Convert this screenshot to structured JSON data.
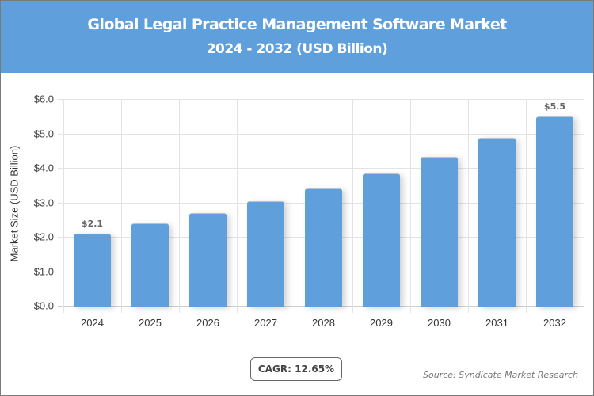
{
  "header": {
    "title": "Global Legal Practice Management Software Market",
    "subtitle": "2024 - 2032 (USD Billion)"
  },
  "footer": {
    "cagr": "CAGR: 12.65%",
    "source": "Source: Syndicate Market Research"
  },
  "colors": {
    "header_bg": "#5f9fdc",
    "bar": "#5f9fdc"
  },
  "chart_data": {
    "type": "bar",
    "title": "Global Legal Practice Management Software Market 2024 - 2032 (USD Billion)",
    "xlabel": "",
    "ylabel": "Market Size (USD Billion)",
    "ylim": [
      0,
      6
    ],
    "yticks": [
      "$0.0",
      "$1.0",
      "$2.0",
      "$3.0",
      "$4.0",
      "$5.0",
      "$6.0"
    ],
    "categories": [
      "2024",
      "2025",
      "2026",
      "2027",
      "2028",
      "2029",
      "2030",
      "2031",
      "2032"
    ],
    "values": [
      2.1,
      2.4,
      2.7,
      3.04,
      3.41,
      3.85,
      4.33,
      4.88,
      5.5
    ],
    "data_labels": {
      "2024": "$2.1",
      "2032": "$5.5"
    },
    "grid": true,
    "legend": "none",
    "annotations": [
      "CAGR: 12.65%",
      "Source: Syndicate Market Research"
    ]
  }
}
